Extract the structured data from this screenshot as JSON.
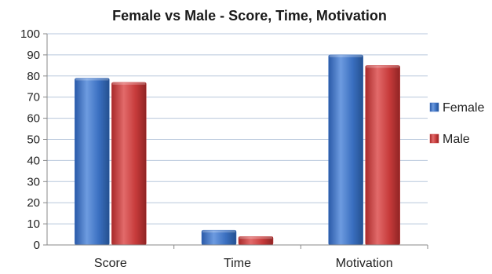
{
  "chart_data": {
    "type": "bar",
    "title": "Female vs Male - Score, Time, Motivation",
    "categories": [
      "Score",
      "Time",
      "Motivation"
    ],
    "series": [
      {
        "name": "Female",
        "values": [
          79,
          7,
          90
        ],
        "color": "#3a6fc0"
      },
      {
        "name": "Male",
        "values": [
          77,
          4,
          85
        ],
        "color": "#c63a3a"
      }
    ],
    "ylim": [
      0,
      100
    ],
    "yticks": [
      "0",
      "10",
      "20",
      "30",
      "40",
      "50",
      "60",
      "70",
      "80",
      "90",
      "100"
    ],
    "ystep": 10,
    "grid": true,
    "legend": "right"
  }
}
